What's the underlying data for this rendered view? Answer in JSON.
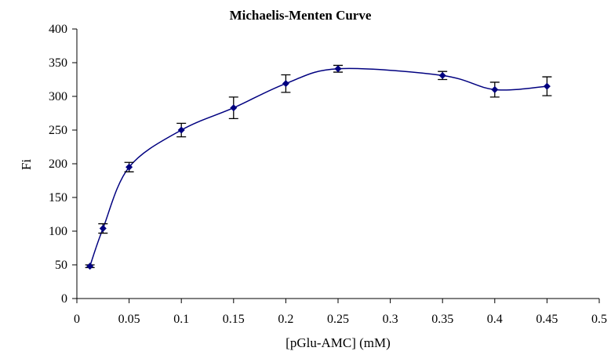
{
  "chart_data": {
    "type": "scatter",
    "title": "Michaelis-Menten Curve",
    "xlabel": "[pGlu-AMC] (mM)",
    "ylabel": "Fi",
    "xlim": [
      0,
      0.5
    ],
    "ylim": [
      0,
      400
    ],
    "xticks": [
      0,
      0.05,
      0.1,
      0.15,
      0.2,
      0.25,
      0.3,
      0.35,
      0.4,
      0.45,
      0.5
    ],
    "yticks": [
      0,
      50,
      100,
      150,
      200,
      250,
      300,
      350,
      400
    ],
    "xtick_labels": [
      "0",
      "0.05",
      "0.1",
      "0.15",
      "0.2",
      "0.25",
      "0.3",
      "0.35",
      "0.4",
      "0.45",
      "0.5"
    ],
    "ytick_labels": [
      "0",
      "50",
      "100",
      "150",
      "200",
      "250",
      "300",
      "350",
      "400"
    ],
    "grid": false,
    "legend": "none",
    "line_style": "smoothed",
    "series": [
      {
        "x": [
          0.0125,
          0.025,
          0.05,
          0.1,
          0.15,
          0.2,
          0.25,
          0.35,
          0.4,
          0.45
        ],
        "y": [
          48,
          104,
          195,
          250,
          283,
          319,
          341,
          331,
          310,
          315
        ],
        "error": [
          2,
          7,
          7,
          10,
          16,
          13,
          5,
          6,
          11,
          14
        ],
        "color": "#000080",
        "marker": "diamond"
      }
    ]
  }
}
